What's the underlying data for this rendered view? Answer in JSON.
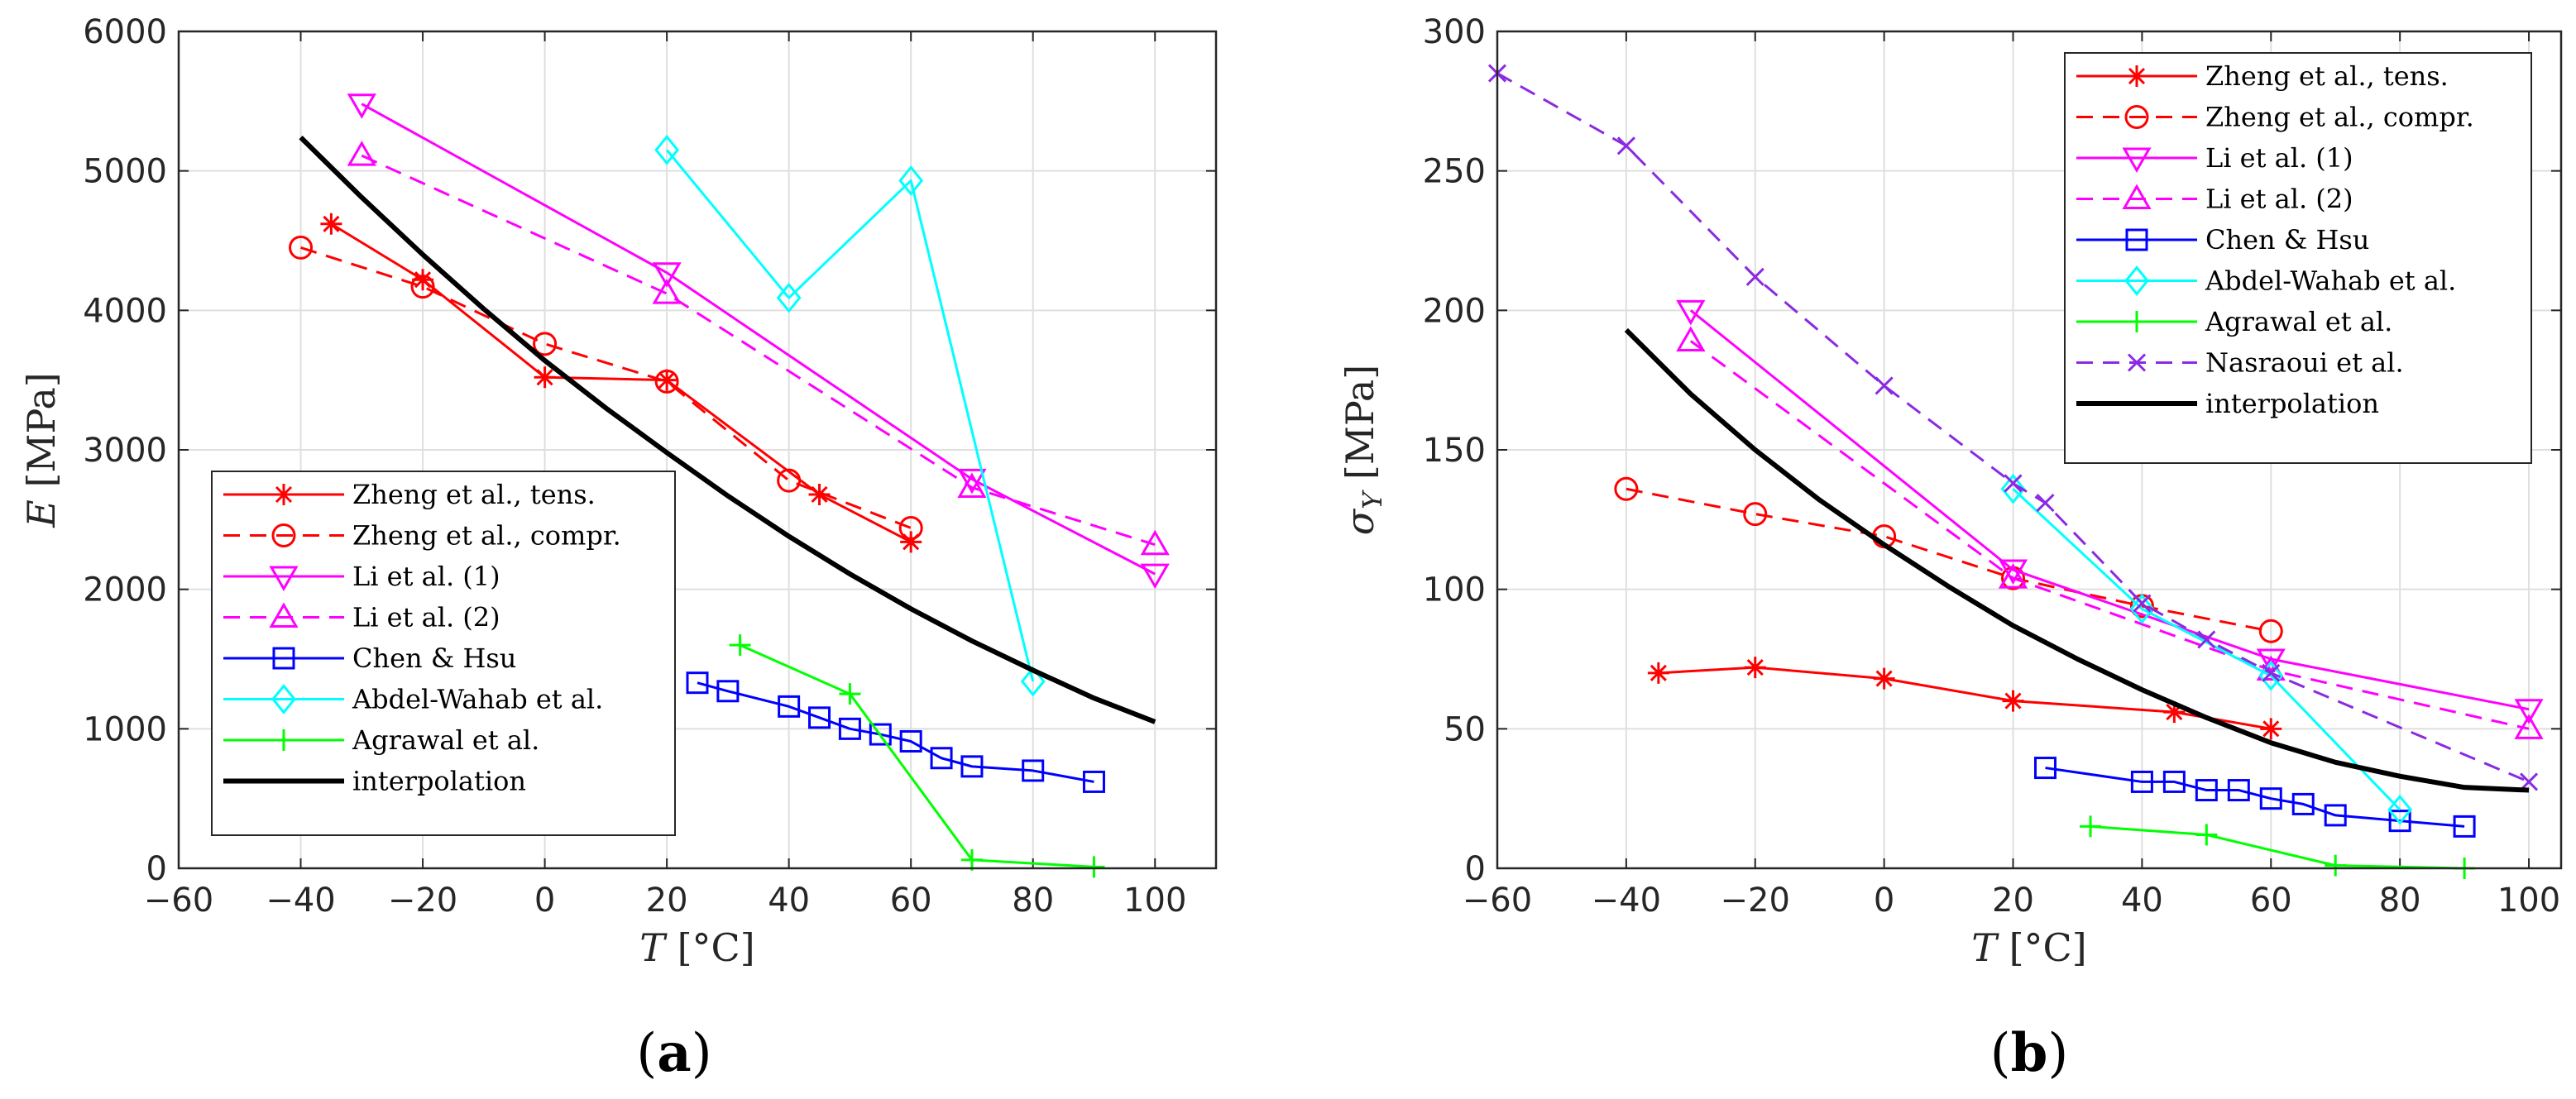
{
  "chart_data": [
    {
      "type": "line",
      "panel_label": "(a)",
      "xlabel_var": "T",
      "xlabel_unit": "[°C]",
      "ylabel_var": "E",
      "ylabel_unit": "[MPa]",
      "xlim": [
        -60,
        110
      ],
      "ylim": [
        0,
        6000
      ],
      "xticks": [
        -60,
        -40,
        -20,
        0,
        20,
        40,
        60,
        80,
        100
      ],
      "yticks": [
        0,
        1000,
        2000,
        3000,
        4000,
        5000,
        6000
      ],
      "grid": true,
      "legend_position": "bottom-left",
      "series": [
        {
          "name": "Zheng et al., tens.",
          "color": "#ff0000",
          "dash": "solid",
          "marker": "asterisk",
          "x": [
            -35,
            -20,
            0,
            20,
            45,
            60
          ],
          "y": [
            4620,
            4220,
            3520,
            3500,
            2680,
            2340
          ]
        },
        {
          "name": "Zheng et al., compr.",
          "color": "#ff0000",
          "dash": "dashed",
          "marker": "circle",
          "x": [
            -40,
            -20,
            0,
            20,
            40,
            60
          ],
          "y": [
            4450,
            4170,
            3760,
            3490,
            2780,
            2440
          ]
        },
        {
          "name": "Li et al. (1)",
          "color": "#ff00ff",
          "dash": "solid",
          "marker": "triangle-down",
          "x": [
            -30,
            20,
            70,
            100
          ],
          "y": [
            5480,
            4270,
            2790,
            2110
          ]
        },
        {
          "name": "Li et al. (2)",
          "color": "#ff00ff",
          "dash": "dashed",
          "marker": "triangle-up",
          "x": [
            -30,
            20,
            70,
            100
          ],
          "y": [
            5110,
            4120,
            2730,
            2320
          ]
        },
        {
          "name": "Chen & Hsu",
          "color": "#0000ff",
          "dash": "solid",
          "marker": "square",
          "x": [
            25,
            30,
            40,
            45,
            50,
            55,
            60,
            65,
            70,
            80,
            90
          ],
          "y": [
            1330,
            1270,
            1160,
            1080,
            1000,
            960,
            910,
            790,
            730,
            700,
            620
          ]
        },
        {
          "name": "Abdel-Wahab et al.",
          "color": "#00ffff",
          "dash": "solid",
          "marker": "diamond",
          "x": [
            20,
            40,
            60,
            80
          ],
          "y": [
            5150,
            4090,
            4930,
            1340
          ]
        },
        {
          "name": "Agrawal et al.",
          "color": "#00ff00",
          "dash": "solid",
          "marker": "plus",
          "x": [
            32,
            50,
            70,
            90
          ],
          "y": [
            1600,
            1250,
            60,
            10
          ]
        },
        {
          "name": "interpolation",
          "color": "#000000",
          "dash": "solid",
          "marker": "none",
          "width": 6,
          "x": [
            -40,
            -30,
            -20,
            -10,
            0,
            10,
            20,
            30,
            40,
            50,
            60,
            70,
            80,
            90,
            100
          ],
          "y": [
            5240,
            4810,
            4400,
            4010,
            3640,
            3300,
            2980,
            2670,
            2380,
            2110,
            1860,
            1630,
            1420,
            1220,
            1050
          ]
        }
      ]
    },
    {
      "type": "line",
      "panel_label": "(b)",
      "xlabel_var": "T",
      "xlabel_unit": "[°C]",
      "ylabel_var": "σ",
      "ylabel_sub": "Y",
      "ylabel_unit": "[MPa]",
      "xlim": [
        -60,
        105
      ],
      "ylim": [
        0,
        300
      ],
      "xticks": [
        -60,
        -40,
        -20,
        0,
        20,
        40,
        60,
        80,
        100
      ],
      "yticks": [
        0,
        50,
        100,
        150,
        200,
        250,
        300
      ],
      "grid": true,
      "legend_position": "top-right",
      "series": [
        {
          "name": "Zheng et al., tens.",
          "color": "#ff0000",
          "dash": "solid",
          "marker": "asterisk",
          "x": [
            -35,
            -20,
            0,
            20,
            45,
            60
          ],
          "y": [
            70,
            72,
            68,
            60,
            56,
            50
          ]
        },
        {
          "name": "Zheng et al., compr.",
          "color": "#ff0000",
          "dash": "dashed",
          "marker": "circle",
          "x": [
            -40,
            -20,
            0,
            20,
            40,
            60
          ],
          "y": [
            136,
            127,
            119,
            104,
            94,
            85
          ]
        },
        {
          "name": "Li et al. (1)",
          "color": "#ff00ff",
          "dash": "solid",
          "marker": "triangle-down",
          "x": [
            -30,
            20,
            60,
            100
          ],
          "y": [
            200,
            107,
            75,
            57
          ]
        },
        {
          "name": "Li et al. (2)",
          "color": "#ff00ff",
          "dash": "dashed",
          "marker": "triangle-up",
          "x": [
            -30,
            20,
            60,
            100
          ],
          "y": [
            189,
            104,
            71,
            50
          ]
        },
        {
          "name": "Chen & Hsu",
          "color": "#0000ff",
          "dash": "solid",
          "marker": "square",
          "x": [
            25,
            40,
            45,
            50,
            55,
            60,
            65,
            70,
            80,
            90
          ],
          "y": [
            36,
            31,
            31,
            28,
            28,
            25,
            23,
            19,
            17,
            15
          ]
        },
        {
          "name": "Abdel-Wahab et al.",
          "color": "#00ffff",
          "dash": "solid",
          "marker": "diamond",
          "x": [
            20,
            40,
            60,
            80
          ],
          "y": [
            136,
            93,
            69,
            21
          ]
        },
        {
          "name": "Agrawal et al.",
          "color": "#00ff00",
          "dash": "solid",
          "marker": "plus",
          "x": [
            32,
            50,
            70,
            90
          ],
          "y": [
            15,
            12,
            1,
            0
          ]
        },
        {
          "name": "Nasraoui et al.",
          "color": "#8a2be2",
          "dash": "dashed",
          "marker": "x",
          "x": [
            -60,
            -40,
            -20,
            0,
            20,
            25,
            40,
            50,
            60,
            100
          ],
          "y": [
            285,
            259,
            212,
            173,
            138,
            131,
            95,
            82,
            70,
            31
          ]
        },
        {
          "name": "interpolation",
          "color": "#000000",
          "dash": "solid",
          "marker": "none",
          "width": 6,
          "x": [
            -40,
            -30,
            -20,
            -10,
            0,
            10,
            20,
            30,
            40,
            50,
            60,
            70,
            80,
            90,
            100
          ],
          "y": [
            193,
            170,
            150,
            132,
            116,
            101,
            87,
            75,
            64,
            54,
            45,
            38,
            33,
            29,
            28
          ]
        }
      ]
    }
  ]
}
